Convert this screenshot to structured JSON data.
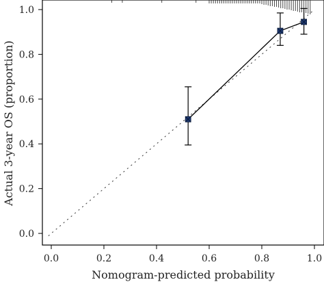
{
  "chart_data": {
    "type": "line",
    "title": "",
    "xlabel": "Nomogram-predicted probability",
    "ylabel": "Actual 3-year OS (proportion)",
    "xlim": [
      -0.02,
      1.02
    ],
    "ylim": [
      -0.02,
      1.04
    ],
    "x_ticks": [
      "0.0",
      "0.2",
      "0.4",
      "0.6",
      "0.8",
      "1.0"
    ],
    "y_ticks": [
      "0.0",
      "0.2",
      "0.4",
      "0.6",
      "0.8",
      "1.0"
    ],
    "grid": false,
    "legend": "none",
    "series": [
      {
        "x": [
          0.52,
          0.87,
          0.96
        ],
        "y": [
          0.51,
          0.905,
          0.945
        ],
        "ci_low": [
          0.395,
          0.84,
          0.89
        ],
        "ci_high": [
          0.655,
          0.985,
          1.005
        ],
        "color": "#1f3b73"
      }
    ],
    "reference_line": {
      "x": [
        -0.01,
        1.0
      ],
      "y": [
        -0.01,
        1.0
      ],
      "style": "dotted"
    },
    "rug_ticks": "distribution of predicted probabilities along top edge"
  }
}
